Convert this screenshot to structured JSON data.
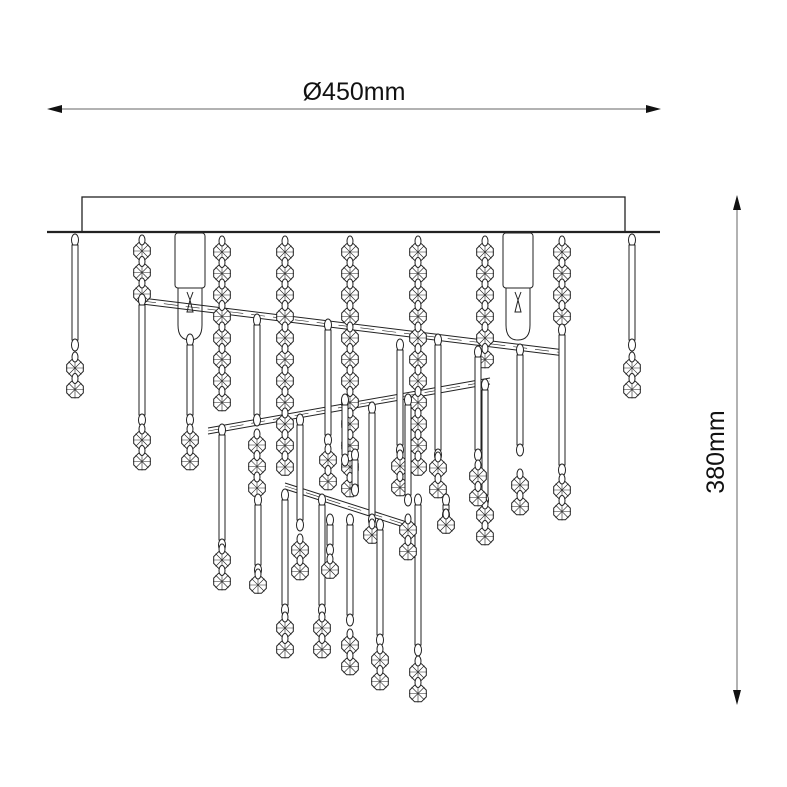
{
  "dimensions": {
    "width_label": "Ø450mm",
    "height_label": "380mm"
  },
  "colors": {
    "line": "#222222",
    "dimension_line": "#999999"
  }
}
